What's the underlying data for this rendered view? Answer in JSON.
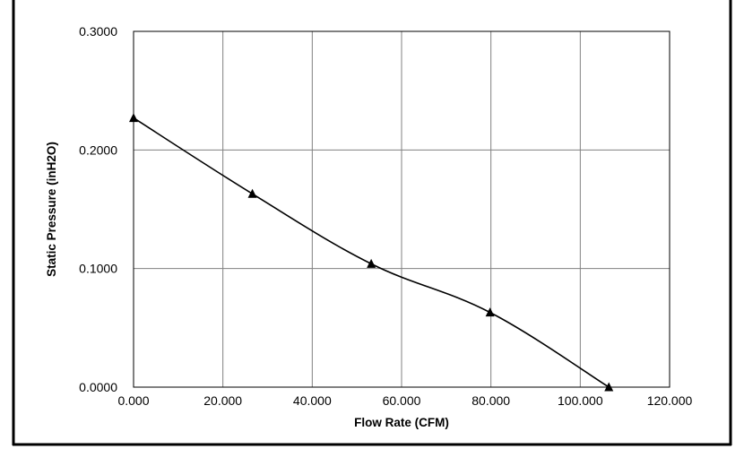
{
  "chart_data": {
    "type": "line",
    "title": "",
    "xlabel": "Flow Rate (CFM)",
    "ylabel": "Static Pressure (inH2O)",
    "xlim": [
      0,
      120
    ],
    "ylim": [
      0,
      0.3
    ],
    "x_ticks": [
      0,
      20,
      40,
      60,
      80,
      100,
      120
    ],
    "x_tick_labels": [
      "0.000",
      "20.000",
      "40.000",
      "60.000",
      "80.000",
      "100.000",
      "120.000"
    ],
    "y_ticks": [
      0,
      0.1,
      0.2,
      0.3
    ],
    "y_tick_labels": [
      "0.0000",
      "0.1000",
      "0.2000",
      "0.3000"
    ],
    "grid": true,
    "legend": "none",
    "series": [
      {
        "marker": "triangle",
        "color": "#000000",
        "x": [
          0.0,
          26.6,
          53.2,
          79.8,
          106.4
        ],
        "y": [
          0.227,
          0.163,
          0.104,
          0.063,
          0.0
        ]
      }
    ]
  }
}
